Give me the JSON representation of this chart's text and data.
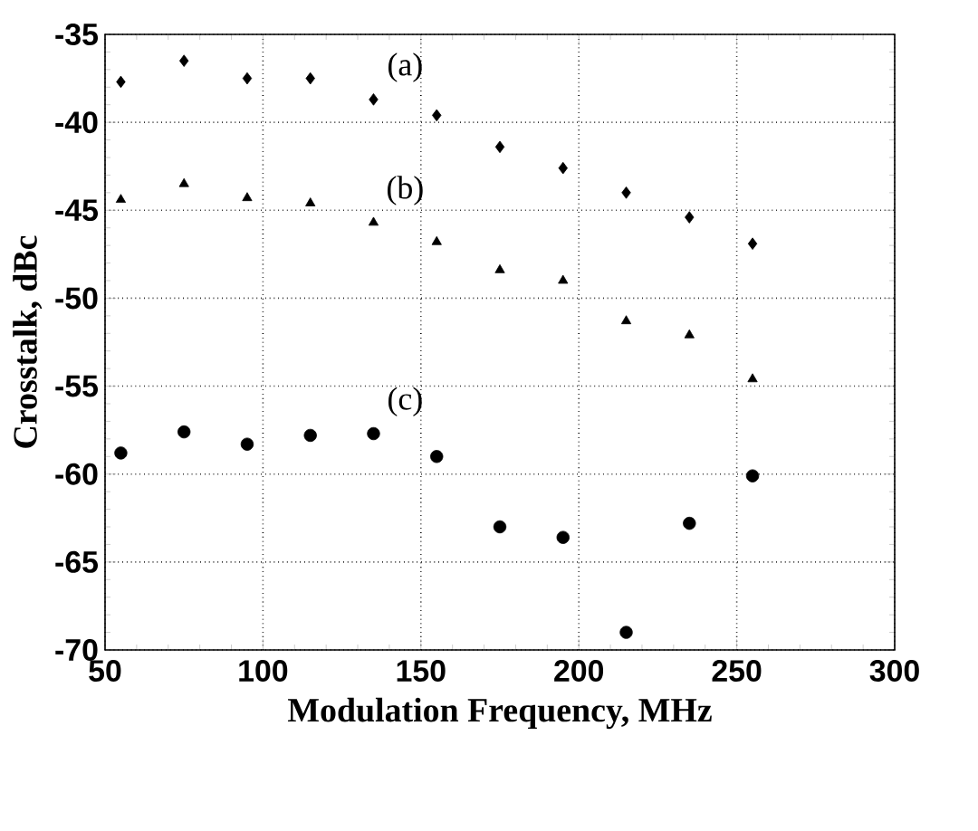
{
  "chart_data": {
    "type": "scatter",
    "xlabel": "Modulation Frequency, MHz",
    "ylabel": "Crosstalk, dBc",
    "x": [
      55,
      75,
      95,
      115,
      135,
      155,
      175,
      195,
      215,
      235,
      255
    ],
    "series": [
      {
        "name": "(a)",
        "color": "#000000",
        "marker": "diamond",
        "values": [
          -37.7,
          -36.5,
          -37.5,
          -37.5,
          -38.7,
          -39.6,
          -41.4,
          -42.6,
          -44.0,
          -45.4,
          -46.9
        ]
      },
      {
        "name": "(b)",
        "color": "#000000",
        "marker": "triangle",
        "values": [
          -44.4,
          -43.5,
          -44.3,
          -44.6,
          -45.7,
          -46.8,
          -48.4,
          -49.0,
          -51.3,
          -52.1,
          -54.6
        ]
      },
      {
        "name": "(c)",
        "color": "#000000",
        "marker": "circle",
        "values": [
          -58.8,
          -57.6,
          -58.3,
          -57.8,
          -57.7,
          -59.0,
          -63.0,
          -63.6,
          -69.0,
          -62.8,
          -60.1
        ]
      }
    ],
    "xlim": [
      50,
      300
    ],
    "ylim": [
      -70,
      -35
    ],
    "xticks": [
      50,
      100,
      150,
      200,
      250,
      300
    ],
    "yticks": [
      -70,
      -65,
      -60,
      -55,
      -50,
      -45,
      -40,
      -35
    ],
    "grid": true
  }
}
